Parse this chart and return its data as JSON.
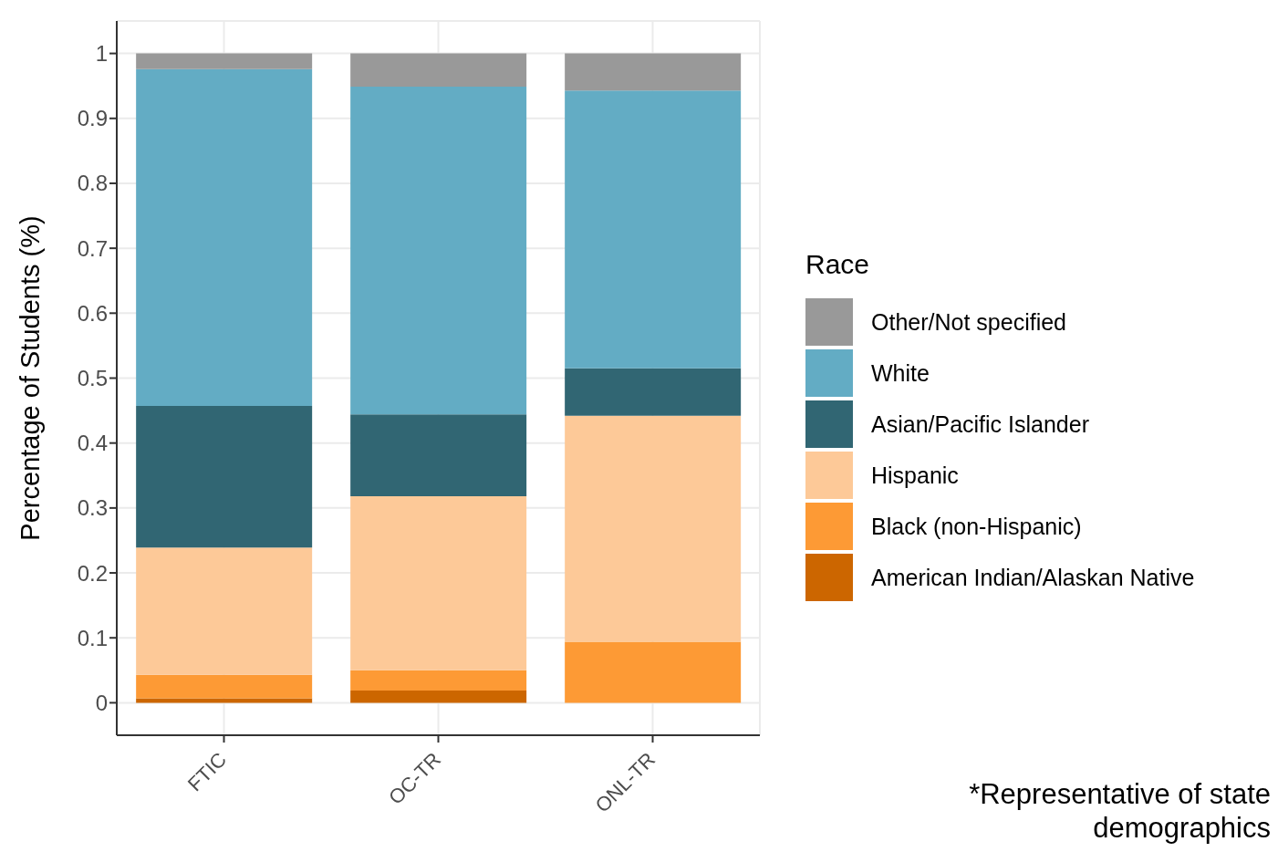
{
  "chart_data": {
    "type": "bar",
    "stacked": true,
    "ylabel": "Percentage of Students (%)",
    "legend_title": "Race",
    "legend": "right",
    "grid": true,
    "categories": [
      "FTIC",
      "OC-TR",
      "ONL-TR"
    ],
    "series": [
      {
        "name": "American Indian/Alaskan Native",
        "color": "#cc6600",
        "values": [
          0.007,
          0.019,
          0
        ]
      },
      {
        "name": "Black (non-Hispanic)",
        "color": "#fd9a35",
        "values": [
          0.036,
          0.031,
          0.094
        ]
      },
      {
        "name": "Hispanic",
        "color": "#fdc998",
        "values": [
          0.196,
          0.268,
          0.348
        ]
      },
      {
        "name": "Asian/Pacific Islander",
        "color": "#316673",
        "values": [
          0.218,
          0.126,
          0.073
        ]
      },
      {
        "name": "White",
        "color": "#63acc4",
        "values": [
          0.519,
          0.505,
          0.428
        ]
      },
      {
        "name": "Other/Not specified",
        "color": "#999999",
        "values": [
          0.024,
          0.051,
          0.057
        ]
      }
    ],
    "ylim": [
      -0.05,
      1.05
    ],
    "yticks": [
      0,
      0.1,
      0.2,
      0.3,
      0.4,
      0.5,
      0.6,
      0.7,
      0.8,
      0.9,
      1
    ],
    "annotations": [
      "*Representative of state demographics"
    ]
  }
}
